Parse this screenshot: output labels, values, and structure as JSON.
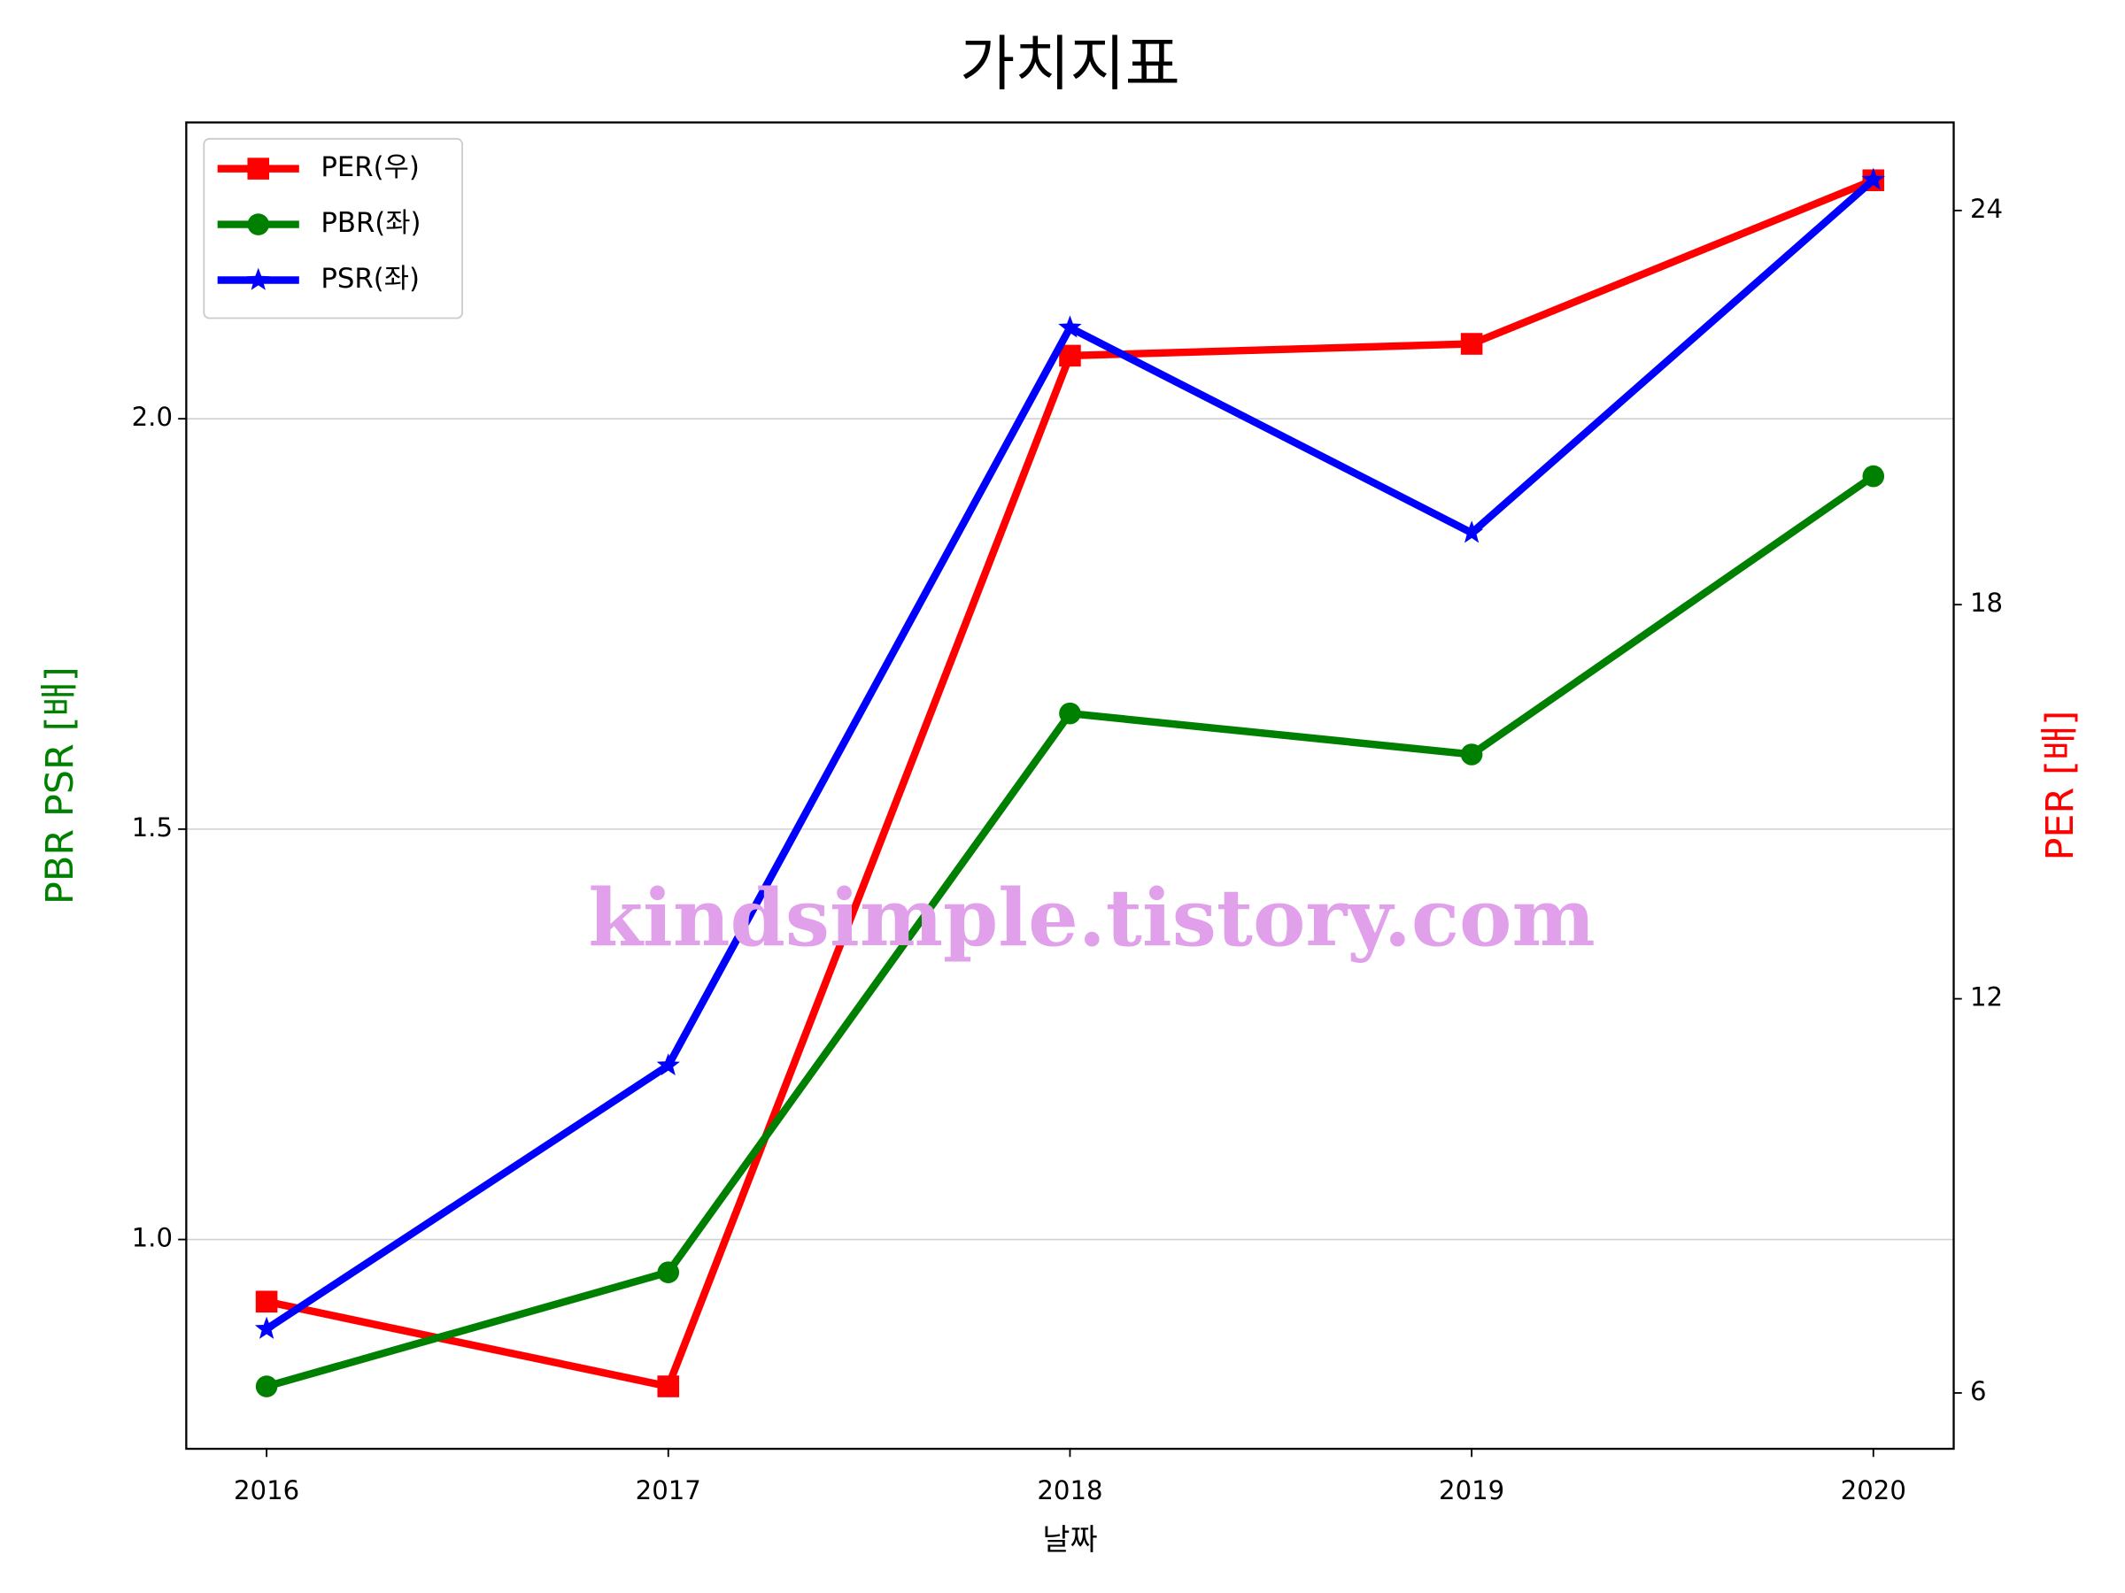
{
  "chart_data": {
    "type": "line",
    "title": "가치지표",
    "xlabel": "날짜",
    "ylabel": "PBR PSR [배]",
    "ylabel_color": "#008000",
    "y2label": "PER [배]",
    "y2label_color": "#ff0000",
    "watermark": "kindsimple.tistory.com",
    "x": [
      2016,
      2017,
      2018,
      2019,
      2020
    ],
    "xlim": [
      2015.8,
      2020.2
    ],
    "xticks": [
      2016,
      2017,
      2018,
      2019,
      2020
    ],
    "ylim": [
      0.745,
      2.361
    ],
    "yticks": [
      {
        "value": 1.0,
        "label": "1.0"
      },
      1.5,
      {
        "value": 2.0,
        "label": "2.0"
      }
    ],
    "y2lim": [
      5.15,
      25.34
    ],
    "y2ticks": [
      6,
      12,
      18,
      24
    ],
    "grid": true,
    "legend": "upper left",
    "series": [
      {
        "name": "PER(우)",
        "color": "#ff0000",
        "marker": "square",
        "axis": "y2",
        "values": [
          7.39,
          6.1,
          21.79,
          21.97,
          24.46
        ]
      },
      {
        "name": "PBR(좌)",
        "color": "#008000",
        "marker": "circle",
        "values": [
          0.821,
          0.96,
          1.641,
          1.591,
          1.93
        ]
      },
      {
        "name": "PSR(좌)",
        "color": "#0000ff",
        "marker": "star",
        "values": [
          0.891,
          1.212,
          2.111,
          1.861,
          2.291
        ]
      }
    ]
  }
}
